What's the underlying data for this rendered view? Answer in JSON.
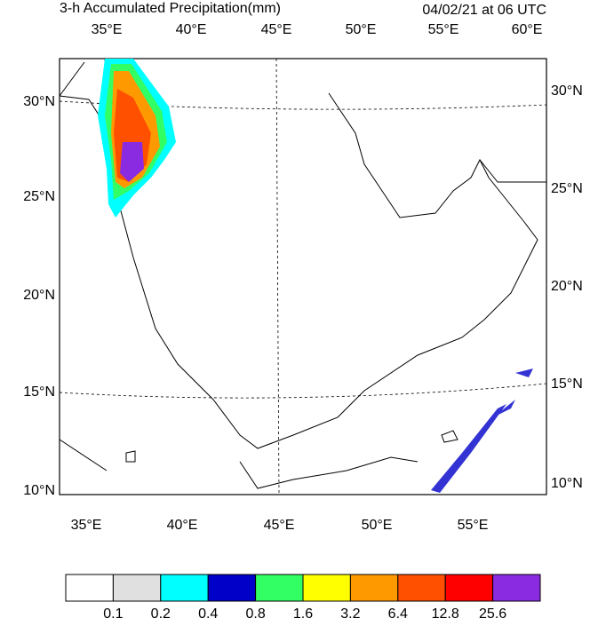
{
  "header": {
    "title": "3-h Accumulated Precipitation(mm)",
    "valid_time": "04/02/21 at 06 UTC"
  },
  "map": {
    "top_lon_labels": [
      "35°E",
      "40°E",
      "45°E",
      "50°E",
      "55°E",
      "60°E"
    ],
    "bottom_lon_labels": [
      "35°E",
      "40°E",
      "45°E",
      "50°E",
      "55°E"
    ],
    "left_lat_labels": [
      "30°N",
      "25°N",
      "20°N",
      "15°N",
      "10°N"
    ],
    "right_lat_labels": [
      "30°N",
      "25°N",
      "20°N",
      "15°N",
      "10°N"
    ]
  },
  "colorbar": {
    "colors": [
      "#ffffff",
      "#e0e0e0",
      "#00ffff",
      "#0000c8",
      "#32ff64",
      "#ffff00",
      "#ff9900",
      "#ff5000",
      "#ff0000",
      "#8a2be2"
    ],
    "levels": [
      0.1,
      0.2,
      0.4,
      0.8,
      1.6,
      3.2,
      6.4,
      12.8,
      25.6
    ]
  }
}
